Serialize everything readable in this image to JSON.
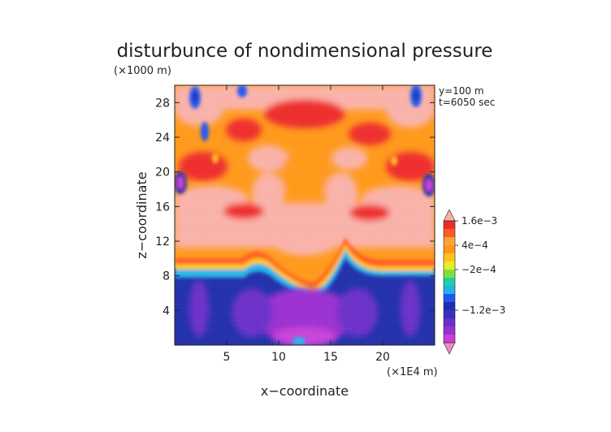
{
  "chart_data": {
    "type": "heatmap",
    "title": "disturbunce of nondimensional pressure",
    "z_unit_note": "(×1000 m)",
    "x_unit_note": "(×1E4 m)",
    "xlabel": "x−coordinate",
    "ylabel": "z−coordinate",
    "info_lines": [
      "y=100  m",
      "t=6050 sec"
    ],
    "xlim": [
      0,
      25
    ],
    "ylim": [
      0,
      30
    ],
    "x_ticks": [
      5,
      10,
      15,
      20
    ],
    "y_ticks": [
      4,
      8,
      12,
      16,
      20,
      24,
      28
    ],
    "colorbar": {
      "levels": [
        {
          "color": "#f08bc8"
        },
        {
          "color": "#c93fd9"
        },
        {
          "color": "#9a2fd0"
        },
        {
          "color": "#6a2ec8"
        },
        {
          "color": "#3a2fc4"
        },
        {
          "color": "#1f2eaa"
        },
        {
          "color": "#2356f0"
        },
        {
          "color": "#20b4e8"
        },
        {
          "color": "#1fd0a6"
        },
        {
          "color": "#7be23a"
        },
        {
          "color": "#e8ec25"
        },
        {
          "color": "#ffc21e"
        },
        {
          "color": "#ff9818"
        },
        {
          "color": "#f7a53a"
        },
        {
          "color": "#ff5a24"
        },
        {
          "color": "#ee2a2a"
        },
        {
          "color": "#f9b1a8"
        }
      ],
      "labels": [
        {
          "text": "1.6e−3",
          "level": 15
        },
        {
          "text": "4e−4",
          "level": 12
        },
        {
          "text": "−2e−4",
          "level": 9
        },
        {
          "text": "−1.2e−3",
          "level": 4
        }
      ]
    },
    "field_regions": [
      {
        "name": "upper-turbulent-layer",
        "z_range": [
          9.5,
          30
        ],
        "dominant": [
          "#ff9818",
          "#ee2a2a",
          "#f9b1a8"
        ]
      },
      {
        "name": "transition-band",
        "z_range": [
          8,
          10.5
        ],
        "dominant": [
          "#ff5a24",
          "#ffc21e",
          "#20b4e8"
        ]
      },
      {
        "name": "lower-layer",
        "z_range": [
          0,
          8.5
        ],
        "dominant": [
          "#1f2eaa",
          "#3a2fc4",
          "#9a2fd0"
        ]
      }
    ]
  }
}
